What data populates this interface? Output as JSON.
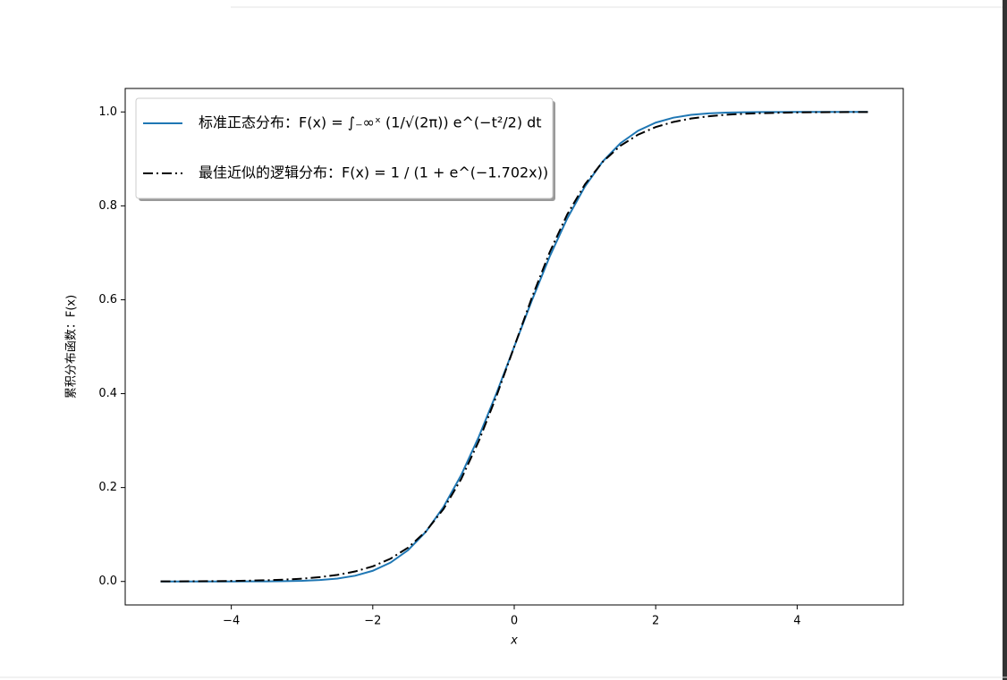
{
  "chart_data": {
    "type": "line",
    "xlabel": "x",
    "ylabel": "累积分布函数：F(x)",
    "x": [
      -5,
      -4.75,
      -4.5,
      -4.25,
      -4,
      -3.75,
      -3.5,
      -3.25,
      -3,
      -2.75,
      -2.5,
      -2.25,
      -2,
      -1.75,
      -1.5,
      -1.25,
      -1,
      -0.75,
      -0.5,
      -0.25,
      0,
      0.25,
      0.5,
      0.75,
      1,
      1.25,
      1.5,
      1.75,
      2,
      2.25,
      2.5,
      2.75,
      3,
      3.25,
      3.5,
      3.75,
      4,
      4.25,
      4.5,
      4.75,
      5
    ],
    "series": [
      {
        "name": "标准正态分布：F(x) = ∫₋∞ˣ (1/√(2π)) e^(−t²/2) dt",
        "color": "#1f77b4",
        "style": "solid",
        "values": [
          0,
          0,
          0,
          0,
          0,
          0.0001,
          0.0002,
          0.0006,
          0.0013,
          0.003,
          0.0062,
          0.0122,
          0.0228,
          0.0401,
          0.0668,
          0.1056,
          0.1587,
          0.2266,
          0.3085,
          0.4013,
          0.5,
          0.5987,
          0.6915,
          0.7734,
          0.8413,
          0.8944,
          0.9332,
          0.9599,
          0.9772,
          0.9878,
          0.9938,
          0.997,
          0.9987,
          0.9994,
          0.9998,
          0.9999,
          1,
          1,
          1,
          1,
          1
        ]
      },
      {
        "name": "最佳近似的逻辑分布：F(x) = 1 / (1 + e^(−1.702x))",
        "color": "#000000",
        "style": "dashdot",
        "values": [
          0.0002,
          0.0003,
          0.0005,
          0.0007,
          0.0011,
          0.0017,
          0.0026,
          0.0039,
          0.006,
          0.0092,
          0.014,
          0.0213,
          0.0322,
          0.0484,
          0.0722,
          0.1065,
          0.1542,
          0.2181,
          0.2992,
          0.3953,
          0.5,
          0.6047,
          0.7008,
          0.7819,
          0.8458,
          0.8935,
          0.9278,
          0.9516,
          0.9678,
          0.9787,
          0.986,
          0.9908,
          0.994,
          0.9961,
          0.9974,
          0.9983,
          0.9989,
          0.9993,
          0.9995,
          0.9997,
          0.9998
        ]
      }
    ],
    "xlim": [
      -5.5,
      5.5
    ],
    "ylim": [
      -0.05,
      1.05
    ],
    "xticks": [
      {
        "value": -4,
        "label": "−4"
      },
      {
        "value": -2,
        "label": "−2"
      },
      0,
      2,
      4
    ],
    "yticks": [
      {
        "value": 0,
        "label": "0.0"
      },
      {
        "value": 0.2,
        "label": "0.2"
      },
      {
        "value": 0.4,
        "label": "0.4"
      },
      {
        "value": 0.6,
        "label": "0.6"
      },
      {
        "value": 0.8,
        "label": "0.8"
      },
      {
        "value": 1,
        "label": "1.0"
      }
    ],
    "legend": "upper left"
  }
}
